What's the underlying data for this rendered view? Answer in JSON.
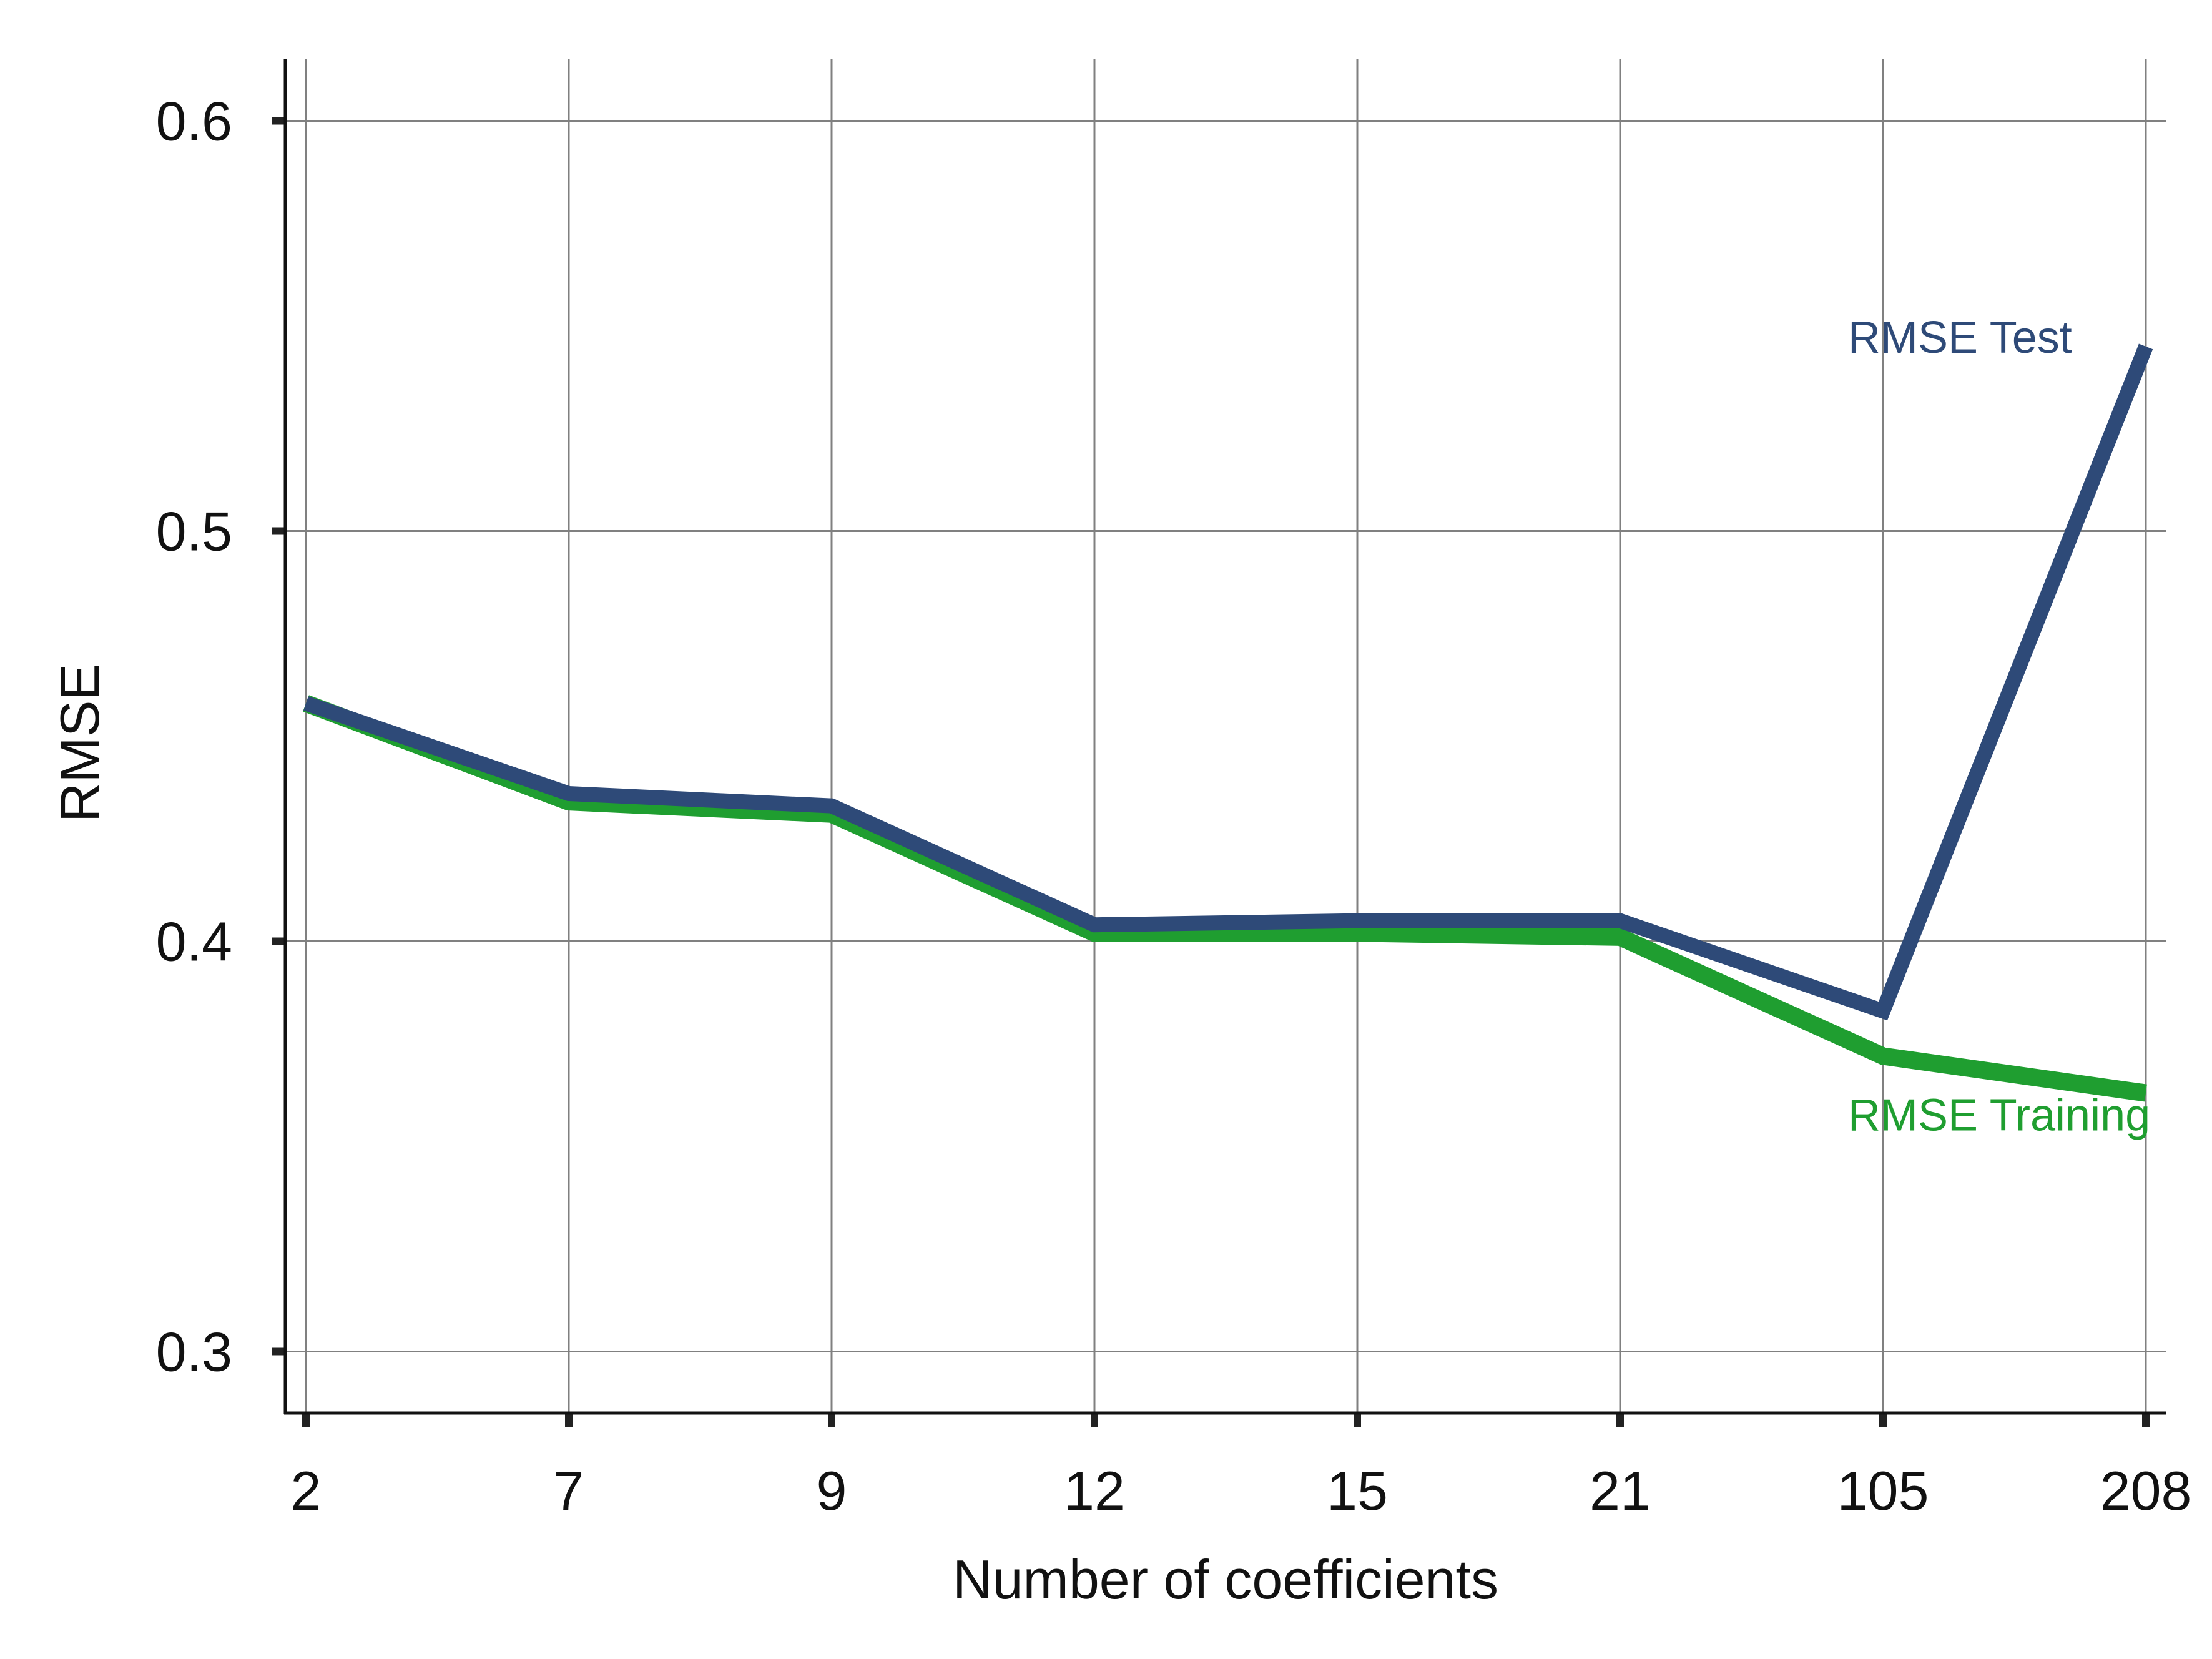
{
  "chart_data": {
    "type": "line",
    "xlabel": "Number of coefficients",
    "ylabel": "RMSE",
    "categories": [
      "2",
      "7",
      "9",
      "12",
      "15",
      "21",
      "105",
      "208"
    ],
    "ylim": [
      0.285,
      0.615
    ],
    "yticks": [
      "0.3",
      "0.4",
      "0.5",
      "0.6"
    ],
    "grid": true,
    "series": [
      {
        "name": "RMSE Training",
        "color": "#1f9e30",
        "values": [
          0.458,
          0.434,
          0.431,
          0.402,
          0.402,
          0.401,
          0.372,
          0.363
        ]
      },
      {
        "name": "RMSE Test",
        "color": "#2e4a78",
        "values": [
          0.458,
          0.436,
          0.433,
          0.404,
          0.405,
          0.405,
          0.383,
          0.545
        ]
      }
    ]
  }
}
